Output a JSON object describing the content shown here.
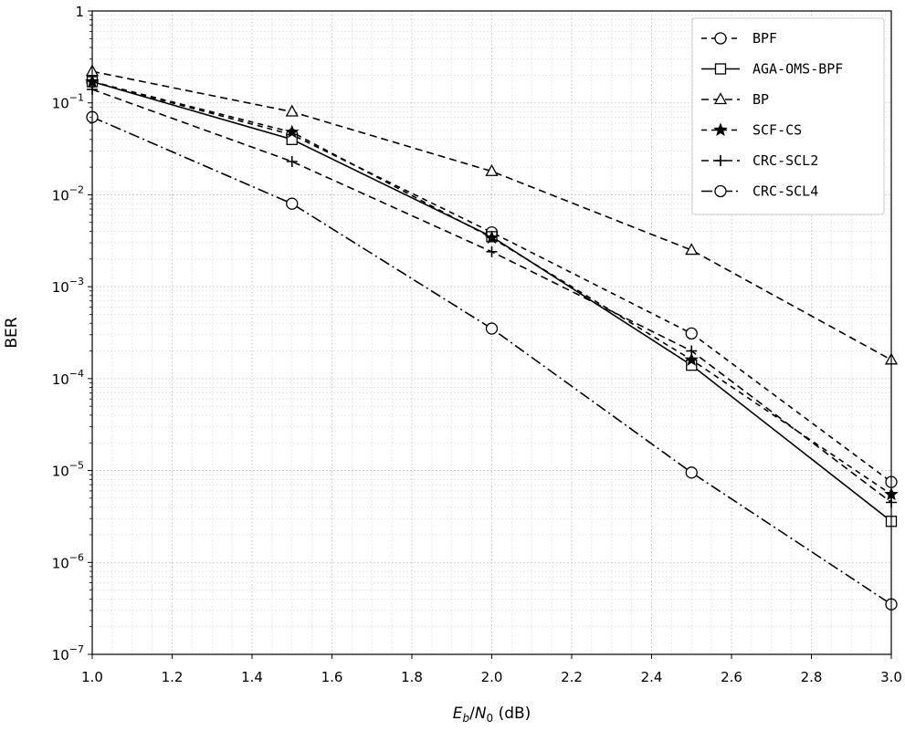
{
  "chart_data": {
    "type": "line",
    "xlabel": "Eb/N0 (dB)",
    "ylabel": "BER",
    "xlim": [
      1.0,
      3.0
    ],
    "ylim": [
      1e-07,
      1
    ],
    "yscale": "log",
    "grid": "major and minor, dotted",
    "legend_position": "top-right",
    "x_ticks": [
      1.0,
      1.2,
      1.4,
      1.6,
      1.8,
      2.0,
      2.2,
      2.4,
      2.6,
      2.8,
      3.0
    ],
    "x_tick_labels": [
      "1.0",
      "1.2",
      "1.4",
      "1.6",
      "1.8",
      "2.0",
      "2.2",
      "2.4",
      "2.6",
      "2.8",
      "3.0"
    ],
    "y_tick_labels": [
      {
        "value": 1,
        "base": "1",
        "exp": ""
      },
      {
        "value": 0.1,
        "base": "10",
        "exp": "−1"
      },
      {
        "value": 0.01,
        "base": "10",
        "exp": "−2"
      },
      {
        "value": 0.001,
        "base": "10",
        "exp": "−3"
      },
      {
        "value": 0.0001,
        "base": "10",
        "exp": "−4"
      },
      {
        "value": 1e-05,
        "base": "10",
        "exp": "−5"
      },
      {
        "value": 1e-06,
        "base": "10",
        "exp": "−6"
      },
      {
        "value": 1e-07,
        "base": "10",
        "exp": "−7"
      }
    ],
    "x": [
      1.0,
      1.5,
      2.0,
      2.5,
      3.0
    ],
    "series": [
      {
        "name": "BPF",
        "values": [
          0.17,
          0.045,
          0.0039,
          0.00031,
          7.5e-06
        ],
        "marker": "circle",
        "dash": "6,5",
        "color": "#000000"
      },
      {
        "name": "AGA-OMS-BPF",
        "values": [
          0.17,
          0.04,
          0.0035,
          0.00014,
          2.8e-06
        ],
        "marker": "square",
        "dash": "",
        "color": "#000000"
      },
      {
        "name": "BP",
        "values": [
          0.22,
          0.08,
          0.018,
          0.0025,
          0.00016
        ],
        "marker": "triangle",
        "dash": "8,5",
        "color": "#000000"
      },
      {
        "name": "SCF-CS",
        "values": [
          0.17,
          0.048,
          0.0034,
          0.00016,
          5.5e-06
        ],
        "marker": "star",
        "dash": "6,5",
        "color": "#000000"
      },
      {
        "name": "CRC-SCL2",
        "values": [
          0.14,
          0.023,
          0.0024,
          0.0002,
          4.5e-06
        ],
        "marker": "plus",
        "dash": "8,5",
        "color": "#000000"
      },
      {
        "name": "CRC-SCL4",
        "values": [
          0.07,
          0.008,
          0.00035,
          9.5e-06,
          3.5e-07
        ],
        "marker": "circle",
        "dash": "12,4,2,4",
        "color": "#000000"
      }
    ]
  }
}
